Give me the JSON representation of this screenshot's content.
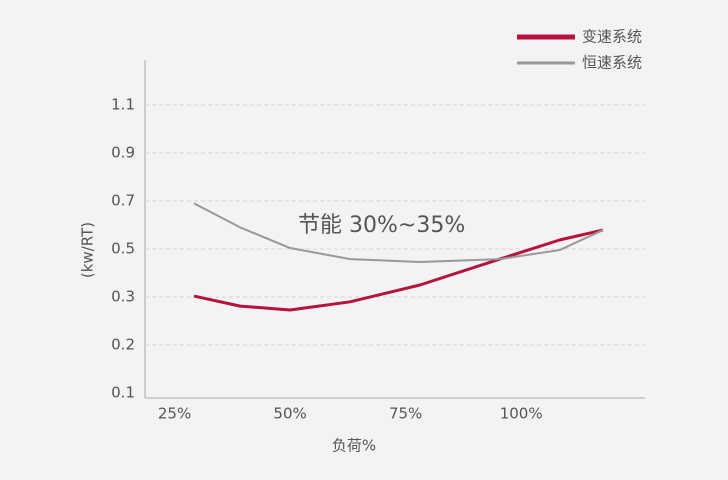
{
  "chart_data": {
    "type": "line",
    "annotation": "节能 30%~35%",
    "ylabel": "(kw/RT)",
    "xlabel": "负荷%",
    "xlim": [
      18.6,
      126.8
    ],
    "xticks": [
      {
        "value": 25,
        "label": "25%"
      },
      {
        "value": 50,
        "label": "50%"
      },
      {
        "value": 75,
        "label": "75%"
      },
      {
        "value": 100,
        "label": "100%"
      }
    ],
    "yticks": [
      0.1,
      0.2,
      0.3,
      0.5,
      0.7,
      0.9,
      1.1
    ],
    "grid": true,
    "legend": "top-right",
    "x": [
      29.2,
      39.2,
      50,
      63,
      78.1,
      95.4,
      108.4,
      117.7
    ],
    "series": [
      {
        "name": "变速系统",
        "color": "#b5123f",
        "values": [
          0.304,
          0.281,
          0.273,
          0.29,
          0.35,
          0.458,
          0.538,
          0.579
        ]
      },
      {
        "name": "恒速系统",
        "color": "#999999",
        "values": [
          0.69,
          0.59,
          0.504,
          0.458,
          0.446,
          0.458,
          0.496,
          0.579
        ]
      }
    ]
  }
}
